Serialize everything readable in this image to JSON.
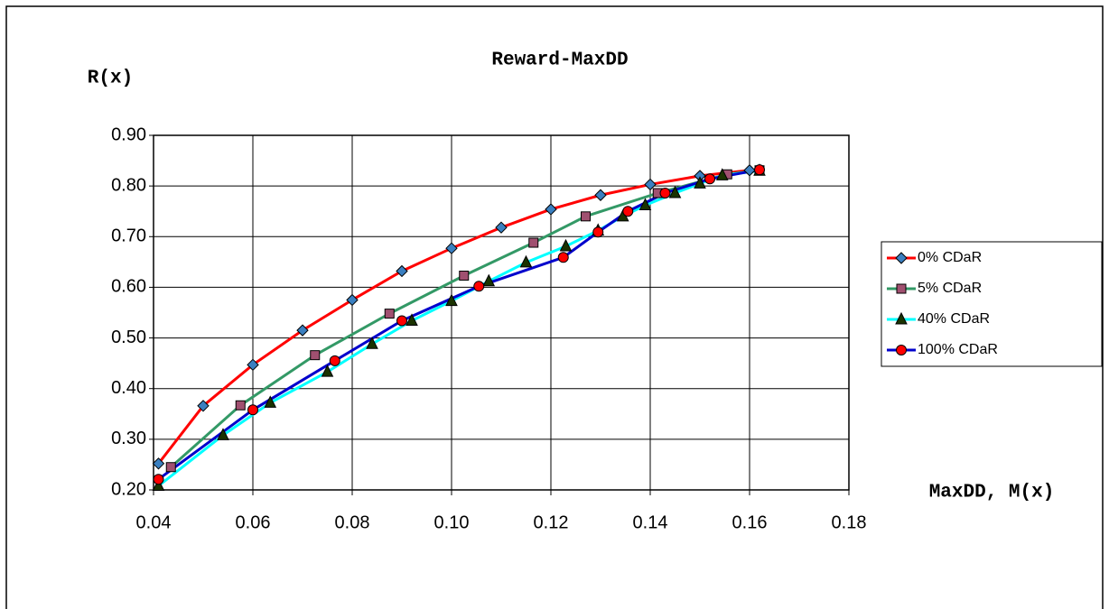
{
  "chart_data": {
    "type": "line",
    "title": "Reward-MaxDD",
    "y_label": "R(x)",
    "x_label": "MaxDD, M(x)",
    "xlim": [
      0.04,
      0.18
    ],
    "ylim": [
      0.2,
      0.9
    ],
    "grid": true,
    "legend": "right",
    "xticks": [
      0.04,
      0.06,
      0.08,
      {
        "value": 0.1,
        "label": "0.10"
      },
      0.12,
      0.14,
      0.16,
      0.18
    ],
    "yticks": [
      {
        "value": 0.2,
        "label": "0.20"
      },
      {
        "value": 0.3,
        "label": "0.30"
      },
      {
        "value": 0.4,
        "label": "0.40"
      },
      {
        "value": 0.5,
        "label": "0.50"
      },
      {
        "value": 0.6,
        "label": "0.60"
      },
      {
        "value": 0.7,
        "label": "0.70"
      },
      {
        "value": 0.8,
        "label": "0.80"
      },
      {
        "value": 0.9,
        "label": "0.90"
      }
    ],
    "series": [
      {
        "name": "0% CDaR",
        "color": "#ff0000",
        "marker": "diamond",
        "marker_color": "#3a7fc0",
        "x": [
          0.041,
          0.05,
          0.06,
          0.07,
          0.08,
          0.09,
          0.1,
          0.11,
          0.12,
          0.13,
          0.14,
          0.15,
          0.16
        ],
        "values": [
          0.252,
          0.366,
          0.447,
          0.515,
          0.575,
          0.632,
          0.677,
          0.718,
          0.754,
          0.782,
          0.803,
          0.82,
          0.831
        ]
      },
      {
        "name": "5% CDaR",
        "color": "#339966",
        "marker": "square",
        "marker_color": "#a05070",
        "x": [
          0.0435,
          0.0575,
          0.0725,
          0.0875,
          0.1025,
          0.1165,
          0.127,
          0.1415,
          0.1555,
          0.162
        ],
        "values": [
          0.245,
          0.367,
          0.466,
          0.548,
          0.623,
          0.688,
          0.74,
          0.786,
          0.823,
          0.831
        ]
      },
      {
        "name": "40% CDaR",
        "color": "#00ffff",
        "marker": "triangle",
        "marker_color": "#1a3300",
        "x": [
          0.041,
          0.054,
          0.0635,
          0.075,
          0.084,
          0.092,
          0.1,
          0.1075,
          0.115,
          0.123,
          0.1295,
          0.1345,
          0.139,
          0.145,
          0.15,
          0.1545,
          0.162
        ],
        "values": [
          0.208,
          0.308,
          0.372,
          0.433,
          0.488,
          0.534,
          0.573,
          0.612,
          0.649,
          0.681,
          0.712,
          0.74,
          0.762,
          0.786,
          0.805,
          0.821,
          0.83
        ]
      },
      {
        "name": "100% CDaR",
        "color": "#0000cc",
        "marker": "circle",
        "marker_color": "#ff0000",
        "x": [
          0.041,
          0.06,
          0.0765,
          0.09,
          0.1055,
          0.1225,
          0.1295,
          0.1355,
          0.143,
          0.152,
          0.162
        ],
        "values": [
          0.221,
          0.358,
          0.455,
          0.534,
          0.602,
          0.659,
          0.709,
          0.75,
          0.786,
          0.814,
          0.832
        ]
      }
    ]
  }
}
